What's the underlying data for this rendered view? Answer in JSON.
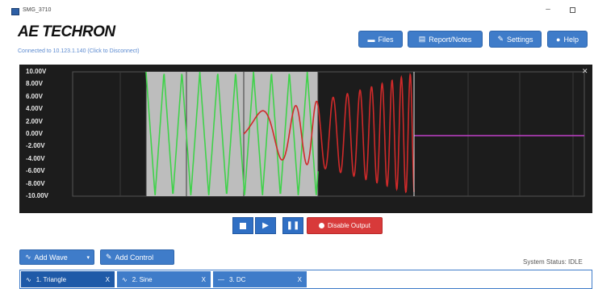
{
  "window": {
    "title": "SMG_3710"
  },
  "header": {
    "logo": "AE TECHRON",
    "connection": "Connected to 10.123.1.140 (Click to Disconnect)",
    "buttons": {
      "files": "Files",
      "report": "Report/Notes",
      "settings": "Settings",
      "help": "Help"
    }
  },
  "scope": {
    "y_labels": [
      "10.00V",
      "8.00V",
      "6.00V",
      "4.00V",
      "2.00V",
      "0.00V",
      "-2.00V",
      "-4.00V",
      "-6.00V",
      "-8.00V",
      "-10.00V"
    ],
    "colors": {
      "triangle": "#3fd24a",
      "sine": "#d02a2a",
      "dc": "#c040c8",
      "background": "#1c1c1c",
      "highlight": "#bdbdbd"
    }
  },
  "transport": {
    "disable_output": "Disable Output"
  },
  "controls": {
    "add_wave": "Add Wave",
    "add_control": "Add Control",
    "system_status": "System Status: IDLE"
  },
  "tabs": [
    {
      "label": "1. Triangle"
    },
    {
      "label": "2. Sine"
    },
    {
      "label": "3. DC"
    }
  ]
}
